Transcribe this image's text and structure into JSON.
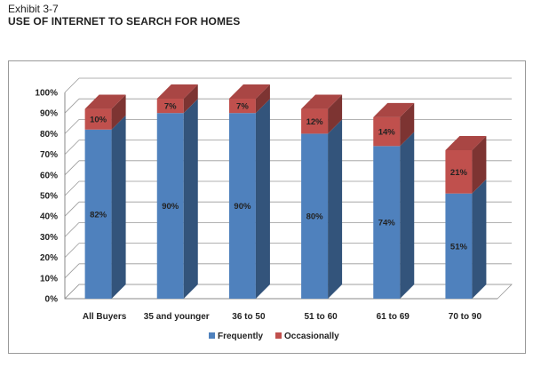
{
  "header": {
    "exhibit": "Exhibit 3-7",
    "title": "USE OF INTERNET TO SEARCH FOR HOMES"
  },
  "colors": {
    "frequently": "#4f81bd",
    "occasionally": "#c0504d"
  },
  "chart_data": {
    "type": "bar",
    "stacked": true,
    "three_d": true,
    "title": "",
    "xlabel": "",
    "ylabel": "",
    "ylim": [
      0,
      100
    ],
    "yticks": [
      "0%",
      "10%",
      "20%",
      "30%",
      "40%",
      "50%",
      "60%",
      "70%",
      "80%",
      "90%",
      "100%"
    ],
    "grid": true,
    "legend_position": "bottom",
    "categories": [
      "All Buyers",
      "35 and younger",
      "36 to 50",
      "51 to 60",
      "61 to 69",
      "70 to 90"
    ],
    "series": [
      {
        "name": "Frequently",
        "values": [
          82,
          90,
          90,
          80,
          74,
          51
        ],
        "labels": [
          "82%",
          "90%",
          "90%",
          "80%",
          "74%",
          "51%"
        ]
      },
      {
        "name": "Occasionally",
        "values": [
          10,
          7,
          7,
          12,
          14,
          21
        ],
        "labels": [
          "10%",
          "7%",
          "7%",
          "12%",
          "14%",
          "21%"
        ]
      }
    ]
  }
}
